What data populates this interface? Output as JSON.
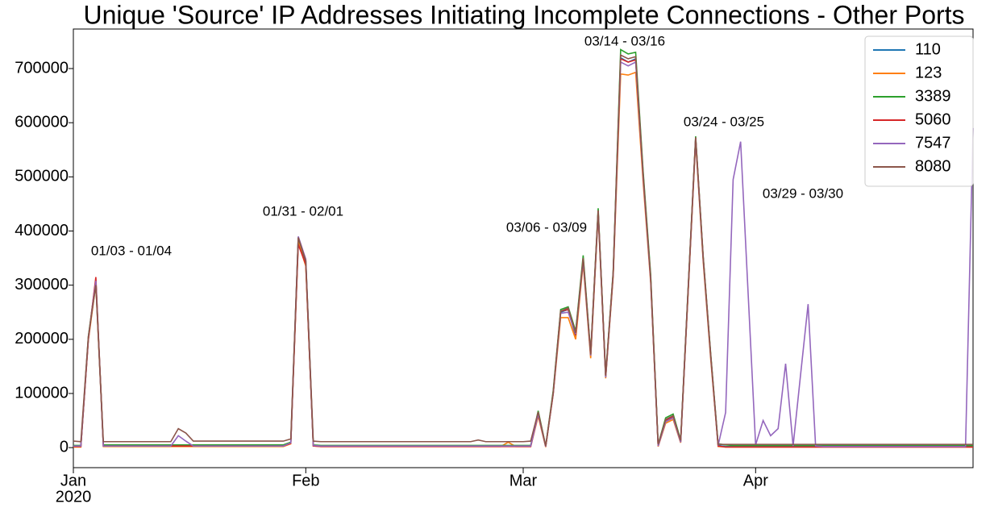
{
  "chart_data": {
    "type": "line",
    "title": "Unique 'Source' IP Addresses Initiating Incomplete Connections - Other Ports",
    "x": [
      "2020-01-01",
      "2020-01-02",
      "2020-01-03",
      "2020-01-04",
      "2020-01-05",
      "2020-01-06",
      "2020-01-07",
      "2020-01-08",
      "2020-01-09",
      "2020-01-10",
      "2020-01-11",
      "2020-01-12",
      "2020-01-13",
      "2020-01-14",
      "2020-01-15",
      "2020-01-16",
      "2020-01-17",
      "2020-01-18",
      "2020-01-19",
      "2020-01-20",
      "2020-01-21",
      "2020-01-22",
      "2020-01-23",
      "2020-01-24",
      "2020-01-25",
      "2020-01-26",
      "2020-01-27",
      "2020-01-28",
      "2020-01-29",
      "2020-01-30",
      "2020-01-31",
      "2020-02-01",
      "2020-02-02",
      "2020-02-03",
      "2020-02-04",
      "2020-02-05",
      "2020-02-06",
      "2020-02-07",
      "2020-02-08",
      "2020-02-09",
      "2020-02-10",
      "2020-02-11",
      "2020-02-12",
      "2020-02-13",
      "2020-02-14",
      "2020-02-15",
      "2020-02-16",
      "2020-02-17",
      "2020-02-18",
      "2020-02-19",
      "2020-02-20",
      "2020-02-21",
      "2020-02-22",
      "2020-02-23",
      "2020-02-24",
      "2020-02-25",
      "2020-02-26",
      "2020-02-27",
      "2020-02-28",
      "2020-02-29",
      "2020-03-01",
      "2020-03-02",
      "2020-03-03",
      "2020-03-04",
      "2020-03-05",
      "2020-03-06",
      "2020-03-07",
      "2020-03-08",
      "2020-03-09",
      "2020-03-10",
      "2020-03-11",
      "2020-03-12",
      "2020-03-13",
      "2020-03-14",
      "2020-03-15",
      "2020-03-16",
      "2020-03-17",
      "2020-03-18",
      "2020-03-19",
      "2020-03-20",
      "2020-03-21",
      "2020-03-22",
      "2020-03-23",
      "2020-03-24",
      "2020-03-25",
      "2020-03-26",
      "2020-03-27",
      "2020-03-28",
      "2020-03-29",
      "2020-03-30",
      "2020-03-31",
      "2020-04-01",
      "2020-04-02",
      "2020-04-03",
      "2020-04-04",
      "2020-04-05",
      "2020-04-06",
      "2020-04-07",
      "2020-04-08",
      "2020-04-09",
      "2020-04-10",
      "2020-04-11",
      "2020-04-12",
      "2020-04-13",
      "2020-04-14",
      "2020-04-15",
      "2020-04-16",
      "2020-04-17",
      "2020-04-18",
      "2020-04-19",
      "2020-04-20",
      "2020-04-21",
      "2020-04-22",
      "2020-04-23",
      "2020-04-24",
      "2020-04-25",
      "2020-04-26",
      "2020-04-27",
      "2020-04-28",
      "2020-04-29",
      "2020-04-30"
    ],
    "series": [
      {
        "name": "110",
        "color": "#1f77b4",
        "values": [
          2000,
          2000,
          200000,
          305000,
          3000,
          3000,
          3000,
          3000,
          3000,
          3000,
          3000,
          3000,
          3000,
          3000,
          3000,
          3000,
          3000,
          3000,
          3000,
          3000,
          3000,
          3000,
          3000,
          3000,
          3000,
          3000,
          3000,
          3000,
          3000,
          8000,
          385000,
          340000,
          4000,
          3000,
          3000,
          3000,
          3000,
          3000,
          3000,
          3000,
          3000,
          3000,
          3000,
          3000,
          3000,
          3000,
          3000,
          3000,
          3000,
          3000,
          3000,
          3000,
          3000,
          3000,
          3000,
          3000,
          3000,
          3000,
          3000,
          3000,
          3000,
          3000,
          60000,
          2000,
          100000,
          250000,
          255000,
          205000,
          345000,
          170000,
          435000,
          130000,
          320000,
          720000,
          712000,
          718000,
          500000,
          310000,
          3000,
          48000,
          55000,
          10000,
          290000,
          570000,
          350000,
          170000,
          4000,
          2000,
          2000,
          2000,
          2000,
          2000,
          2000,
          2000,
          2000,
          2000,
          2000,
          2000,
          2000,
          2000,
          2000,
          2000,
          2000,
          2000,
          2000,
          2000,
          2000,
          2000,
          2000,
          2000,
          2000,
          2000,
          2000,
          2000,
          2000,
          2000,
          2000,
          2000,
          2000,
          2000,
          2000
        ]
      },
      {
        "name": "123",
        "color": "#ff7f0e",
        "values": [
          1000,
          1000,
          198000,
          302000,
          2000,
          2000,
          2000,
          2000,
          2000,
          2000,
          2000,
          2000,
          2000,
          2000,
          2000,
          2000,
          2000,
          2000,
          2000,
          2000,
          2000,
          2000,
          2000,
          2000,
          2000,
          2000,
          2000,
          2000,
          2000,
          7000,
          380000,
          335000,
          3000,
          2000,
          2000,
          2000,
          2000,
          2000,
          2000,
          2000,
          2000,
          2000,
          2000,
          2000,
          2000,
          2000,
          2000,
          2000,
          2000,
          2000,
          2000,
          2000,
          2000,
          2000,
          2000,
          2000,
          2000,
          2000,
          10000,
          2000,
          2000,
          2000,
          58000,
          1000,
          98000,
          240000,
          240000,
          200000,
          340000,
          165000,
          430000,
          128000,
          315000,
          690000,
          688000,
          693000,
          490000,
          305000,
          2000,
          45000,
          52000,
          9000,
          285000,
          565000,
          345000,
          165000,
          2000,
          1000,
          1000,
          1000,
          1000,
          1000,
          1000,
          1000,
          1000,
          1000,
          1000,
          1000,
          1000,
          1000,
          1000,
          1000,
          1000,
          1000,
          1000,
          1000,
          1000,
          1000,
          1000,
          1000,
          1000,
          1000,
          1000,
          1000,
          1000,
          1000,
          1000,
          1000,
          1000,
          1000,
          1000
        ]
      },
      {
        "name": "3389",
        "color": "#2ca02c",
        "values": [
          4000,
          4000,
          205000,
          310000,
          5000,
          5000,
          5000,
          5000,
          5000,
          5000,
          5000,
          5000,
          5000,
          5000,
          5000,
          5000,
          5000,
          5000,
          5000,
          5000,
          5000,
          5000,
          5000,
          5000,
          5000,
          5000,
          5000,
          5000,
          5000,
          10000,
          388000,
          345000,
          5000,
          4000,
          4000,
          4000,
          4000,
          4000,
          4000,
          4000,
          4000,
          4000,
          4000,
          4000,
          4000,
          4000,
          4000,
          4000,
          4000,
          4000,
          4000,
          4000,
          4000,
          4000,
          4000,
          4000,
          4000,
          4000,
          4000,
          4000,
          4000,
          4000,
          68000,
          3000,
          105000,
          255000,
          260000,
          215000,
          355000,
          175000,
          442000,
          135000,
          325000,
          735000,
          727000,
          730000,
          510000,
          320000,
          6000,
          55000,
          62000,
          14000,
          295000,
          575000,
          355000,
          175000,
          7000,
          5000,
          4000,
          4000,
          4000,
          4000,
          4000,
          4000,
          4000,
          4000,
          4000,
          4000,
          4000,
          4000,
          4000,
          4000,
          4000,
          4000,
          4000,
          4000,
          4000,
          4000,
          4000,
          4000,
          4000,
          4000,
          4000,
          4000,
          4000,
          4000,
          4000,
          4000,
          4000,
          4000,
          4000
        ]
      },
      {
        "name": "5060",
        "color": "#d62728",
        "values": [
          2000,
          2000,
          200000,
          315000,
          3000,
          3000,
          3000,
          3000,
          3000,
          3000,
          3000,
          3000,
          3000,
          3000,
          3000,
          3000,
          3000,
          3000,
          3000,
          3000,
          3000,
          3000,
          3000,
          3000,
          3000,
          3000,
          3000,
          3000,
          3000,
          8000,
          375000,
          338000,
          3000,
          2000,
          2000,
          2000,
          2000,
          2000,
          2000,
          2000,
          2000,
          2000,
          2000,
          2000,
          2000,
          2000,
          2000,
          2000,
          2000,
          2000,
          2000,
          2000,
          2000,
          2000,
          2000,
          2000,
          2000,
          2000,
          2000,
          2000,
          2000,
          2000,
          62000,
          2000,
          100000,
          252000,
          255000,
          208000,
          348000,
          172000,
          437000,
          132000,
          320000,
          718000,
          712000,
          716000,
          500000,
          312000,
          3000,
          50000,
          57000,
          11000,
          290000,
          572000,
          352000,
          172000,
          3000,
          1000,
          1000,
          1000,
          1000,
          1000,
          1000,
          1000,
          1000,
          1000,
          1000,
          1000,
          1000,
          1000,
          1000,
          1000,
          1000,
          1000,
          1000,
          1000,
          1000,
          1000,
          1000,
          1000,
          1000,
          1000,
          1000,
          1000,
          1000,
          1000,
          1000,
          1000,
          1000,
          1000,
          1000
        ]
      },
      {
        "name": "7547",
        "color": "#9467bd",
        "values": [
          3000,
          3000,
          202000,
          308000,
          3000,
          3000,
          3000,
          3000,
          3000,
          3000,
          3000,
          3000,
          3000,
          3000,
          22000,
          12000,
          3000,
          3000,
          3000,
          3000,
          3000,
          3000,
          3000,
          3000,
          3000,
          3000,
          3000,
          3000,
          3000,
          9000,
          390000,
          348000,
          4000,
          3000,
          3000,
          3000,
          3000,
          3000,
          3000,
          3000,
          3000,
          3000,
          3000,
          3000,
          3000,
          3000,
          3000,
          3000,
          3000,
          3000,
          3000,
          3000,
          3000,
          3000,
          3000,
          3000,
          3000,
          3000,
          3000,
          3000,
          3000,
          3000,
          62000,
          2000,
          100000,
          248000,
          250000,
          210000,
          345000,
          170000,
          435000,
          130000,
          320000,
          712000,
          705000,
          712000,
          500000,
          310000,
          3000,
          48000,
          55000,
          10000,
          290000,
          570000,
          350000,
          170000,
          4000,
          65000,
          495000,
          565000,
          285000,
          5000,
          50000,
          22000,
          35000,
          155000,
          3000,
          135000,
          265000,
          3000,
          2000,
          2000,
          2000,
          2000,
          2000,
          2000,
          2000,
          2000,
          2000,
          2000,
          2000,
          2000,
          2000,
          2000,
          2000,
          2000,
          2000,
          2000,
          2000,
          2000,
          590000
        ]
      },
      {
        "name": "8080",
        "color": "#8c564b",
        "values": [
          12000,
          11000,
          205000,
          300000,
          11000,
          11000,
          11000,
          11000,
          11000,
          11000,
          11000,
          11000,
          11000,
          11000,
          35000,
          27000,
          12000,
          12000,
          12000,
          12000,
          12000,
          12000,
          12000,
          12000,
          12000,
          12000,
          12000,
          12000,
          12000,
          16000,
          388000,
          345000,
          12000,
          11000,
          11000,
          11000,
          11000,
          11000,
          11000,
          11000,
          11000,
          11000,
          11000,
          11000,
          11000,
          11000,
          11000,
          11000,
          11000,
          11000,
          11000,
          11000,
          11000,
          11000,
          14000,
          11000,
          11000,
          11000,
          11000,
          11000,
          11000,
          12000,
          66000,
          3000,
          102000,
          252000,
          258000,
          212000,
          350000,
          172000,
          438000,
          133000,
          322000,
          725000,
          718000,
          722000,
          505000,
          315000,
          6000,
          52000,
          59000,
          13000,
          292000,
          573000,
          352000,
          172000,
          6000,
          6000,
          6000,
          6000,
          6000,
          6000,
          6000,
          6000,
          6000,
          6000,
          6000,
          6000,
          6000,
          6000,
          6000,
          6000,
          6000,
          6000,
          6000,
          6000,
          6000,
          6000,
          6000,
          6000,
          6000,
          6000,
          6000,
          6000,
          6000,
          6000,
          6000,
          6000,
          6000,
          6000,
          6000
        ]
      }
    ],
    "xlim": [
      "2020-01-01",
      "2020-04-30"
    ],
    "xticks": [
      {
        "value": "2020-01-01",
        "label": "Jan"
      },
      {
        "value": "2020-02-01",
        "label": "Feb"
      },
      {
        "value": "2020-03-01",
        "label": "Mar"
      },
      {
        "value": "2020-04-01",
        "label": "Apr"
      }
    ],
    "x_year_label": "2020",
    "ylim": [
      -37000,
      773000
    ],
    "yticks": [
      0,
      100000,
      200000,
      300000,
      400000,
      500000,
      600000,
      700000
    ],
    "legend": "upper right",
    "annotations": [
      "01/03 - 01/04",
      "01/31 - 02/01",
      "03/06 - 03/09",
      "03/14 - 03/16",
      "03/24 - 03/25",
      "03/29 - 03/30"
    ]
  }
}
